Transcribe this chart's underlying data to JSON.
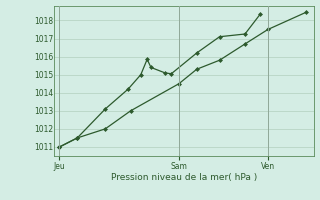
{
  "background_color": "#d4ede4",
  "grid_color": "#b8d4c4",
  "line_color": "#2d5a2d",
  "marker_color": "#2d5a2d",
  "xlabel": "Pression niveau de la mer( hPa )",
  "ylim": [
    1010.5,
    1018.8
  ],
  "yticks": [
    1011,
    1012,
    1013,
    1014,
    1015,
    1016,
    1017,
    1018
  ],
  "xtick_positions": [
    0.0,
    0.47,
    0.82
  ],
  "xtick_labels": [
    "Jeu",
    "Sam",
    "Ven"
  ],
  "series1_x": [
    0.0,
    0.07,
    0.18,
    0.27,
    0.32,
    0.345,
    0.36,
    0.415,
    0.44,
    0.54,
    0.63,
    0.73,
    0.79
  ],
  "series1_y": [
    1011.0,
    1011.5,
    1013.1,
    1014.2,
    1015.0,
    1015.85,
    1015.4,
    1015.1,
    1015.05,
    1016.2,
    1017.1,
    1017.25,
    1018.35
  ],
  "series2_x": [
    0.0,
    0.07,
    0.18,
    0.28,
    0.47,
    0.54,
    0.63,
    0.73,
    0.82,
    0.97
  ],
  "series2_y": [
    1011.0,
    1011.5,
    1012.0,
    1013.0,
    1014.5,
    1015.3,
    1015.8,
    1016.7,
    1017.5,
    1018.45
  ],
  "vline_x": [
    0.0,
    0.47,
    0.82
  ],
  "xlim": [
    -0.02,
    1.0
  ]
}
